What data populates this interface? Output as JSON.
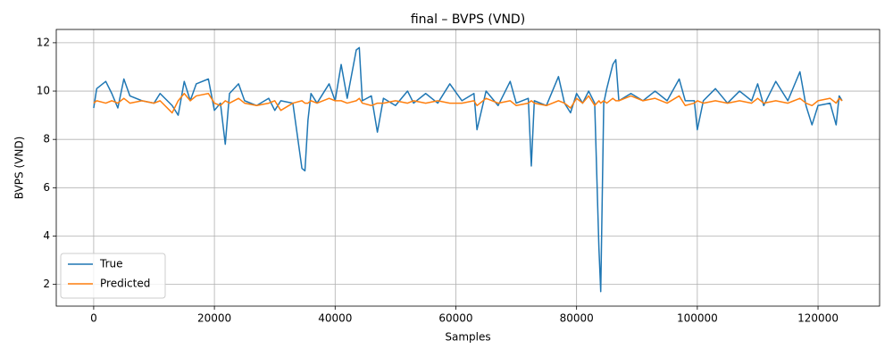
{
  "chart_data": {
    "type": "line",
    "title": "final – BVPS (VND)",
    "xlabel": "Samples",
    "ylabel": "BVPS (VND)",
    "x": [
      0,
      500,
      2000,
      3000,
      4000,
      5000,
      6000,
      8000,
      10000,
      11000,
      13000,
      14000,
      15000,
      16000,
      17000,
      19000,
      20000,
      21000,
      21800,
      22500,
      24000,
      25000,
      27000,
      29000,
      30000,
      31000,
      33000,
      34500,
      35000,
      35500,
      36000,
      37000,
      39000,
      40000,
      41000,
      42000,
      43500,
      44000,
      44500,
      46000,
      47000,
      48000,
      50000,
      52000,
      53000,
      55000,
      57000,
      59000,
      61000,
      63000,
      63500,
      65000,
      67000,
      69000,
      70000,
      72000,
      72500,
      73000,
      75000,
      77000,
      78000,
      79000,
      80000,
      81000,
      82000,
      83000,
      83700,
      84000,
      84500,
      85000,
      86000,
      86500,
      87000,
      89000,
      91000,
      93000,
      95000,
      97000,
      98000,
      99500,
      100000,
      101000,
      103000,
      105000,
      107000,
      109000,
      110000,
      111000,
      113000,
      115000,
      116000,
      117000,
      118000,
      119000,
      120000,
      122000,
      123000,
      123500,
      124000
    ],
    "series": [
      {
        "name": "True",
        "color": "#1f77b4",
        "values": [
          9.3,
          10.1,
          10.4,
          9.9,
          9.3,
          10.5,
          9.8,
          9.6,
          9.5,
          9.9,
          9.4,
          9.0,
          10.4,
          9.6,
          10.3,
          10.5,
          9.2,
          9.5,
          7.8,
          9.9,
          10.3,
          9.6,
          9.4,
          9.7,
          9.2,
          9.6,
          9.5,
          6.8,
          6.7,
          8.8,
          9.9,
          9.5,
          10.3,
          9.6,
          11.1,
          9.7,
          11.7,
          11.8,
          9.6,
          9.8,
          8.3,
          9.7,
          9.4,
          10.0,
          9.5,
          9.9,
          9.5,
          10.3,
          9.6,
          9.9,
          8.4,
          10.0,
          9.4,
          10.4,
          9.5,
          9.7,
          6.9,
          9.6,
          9.4,
          10.6,
          9.5,
          9.1,
          9.9,
          9.5,
          10.0,
          9.5,
          3.5,
          1.7,
          9.5,
          10.1,
          11.1,
          11.3,
          9.6,
          9.9,
          9.6,
          10.0,
          9.6,
          10.5,
          9.6,
          9.6,
          8.4,
          9.6,
          10.1,
          9.5,
          10.0,
          9.6,
          10.3,
          9.4,
          10.4,
          9.6,
          10.2,
          10.8,
          9.4,
          8.6,
          9.4,
          9.5,
          8.6,
          9.8,
          9.6
        ]
      },
      {
        "name": "Predicted",
        "color": "#ff7f0e",
        "values": [
          9.5,
          9.6,
          9.5,
          9.6,
          9.5,
          9.7,
          9.5,
          9.6,
          9.5,
          9.6,
          9.1,
          9.6,
          9.9,
          9.6,
          9.8,
          9.9,
          9.5,
          9.4,
          9.6,
          9.5,
          9.7,
          9.5,
          9.4,
          9.5,
          9.6,
          9.2,
          9.5,
          9.6,
          9.5,
          9.5,
          9.6,
          9.5,
          9.7,
          9.6,
          9.6,
          9.5,
          9.6,
          9.7,
          9.5,
          9.4,
          9.5,
          9.5,
          9.6,
          9.5,
          9.6,
          9.5,
          9.6,
          9.5,
          9.5,
          9.6,
          9.4,
          9.7,
          9.5,
          9.6,
          9.4,
          9.5,
          9.6,
          9.5,
          9.4,
          9.6,
          9.5,
          9.3,
          9.7,
          9.5,
          9.8,
          9.4,
          9.6,
          9.5,
          9.6,
          9.5,
          9.7,
          9.6,
          9.6,
          9.8,
          9.6,
          9.7,
          9.5,
          9.8,
          9.4,
          9.5,
          9.6,
          9.5,
          9.6,
          9.5,
          9.6,
          9.5,
          9.7,
          9.5,
          9.6,
          9.5,
          9.6,
          9.7,
          9.5,
          9.4,
          9.6,
          9.7,
          9.5,
          9.7,
          9.6
        ]
      }
    ],
    "xlim": [
      -6200,
      130200
    ],
    "ylim": [
      1.1,
      12.55
    ],
    "xticks": [
      0,
      20000,
      40000,
      60000,
      80000,
      100000,
      120000
    ],
    "yticks": [
      2,
      4,
      6,
      8,
      10,
      12
    ],
    "grid": true,
    "legend": "lower left"
  }
}
